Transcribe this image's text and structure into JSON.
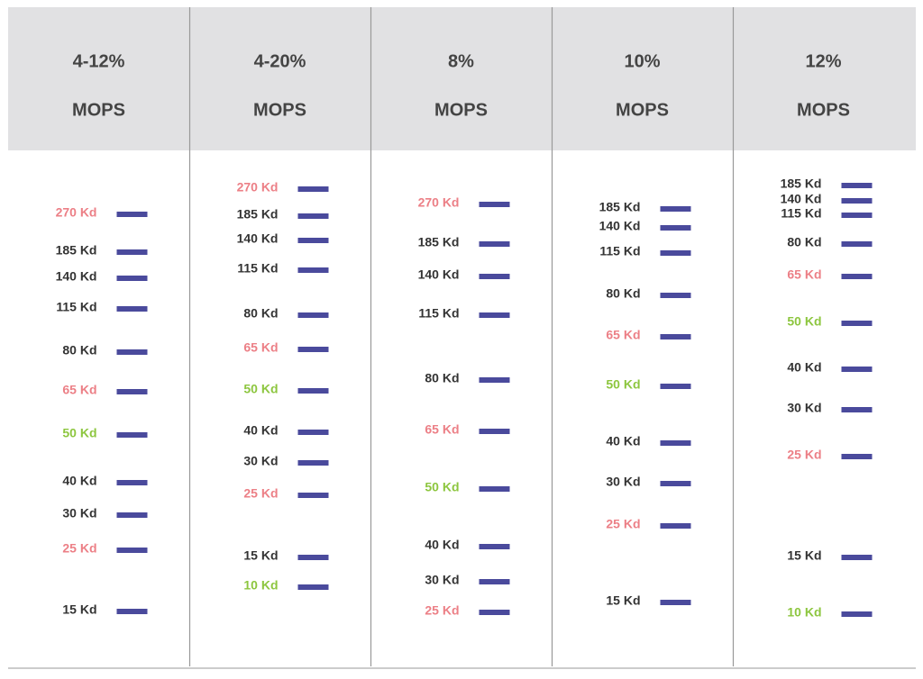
{
  "columns": [
    {
      "percent": "4-12%",
      "buffer": "MOPS",
      "bands": [
        {
          "label": "270 Kd",
          "color": "#ec7f86"
        },
        {
          "label": "185 Kd",
          "color": "#333333"
        },
        {
          "label": "140 Kd",
          "color": "#333333"
        },
        {
          "label": "115 Kd",
          "color": "#333333"
        },
        {
          "label": "80 Kd",
          "color": "#333333"
        },
        {
          "label": "65 Kd",
          "color": "#ec7f86"
        },
        {
          "label": "50 Kd",
          "color": "#8dc63f"
        },
        {
          "label": "40 Kd",
          "color": "#333333"
        },
        {
          "label": "30 Kd",
          "color": "#333333"
        },
        {
          "label": "25 Kd",
          "color": "#ec7f86"
        },
        {
          "label": "15 Kd",
          "color": "#333333"
        }
      ]
    },
    {
      "percent": "4-20%",
      "buffer": "MOPS",
      "bands": [
        {
          "label": "270 Kd",
          "color": "#ec7f86"
        },
        {
          "label": "185 Kd",
          "color": "#333333"
        },
        {
          "label": "140 Kd",
          "color": "#333333"
        },
        {
          "label": "115 Kd",
          "color": "#333333"
        },
        {
          "label": "80 Kd",
          "color": "#333333"
        },
        {
          "label": "65 Kd",
          "color": "#ec7f86"
        },
        {
          "label": "50 Kd",
          "color": "#8dc63f"
        },
        {
          "label": "40 Kd",
          "color": "#333333"
        },
        {
          "label": "30 Kd",
          "color": "#333333"
        },
        {
          "label": "25 Kd",
          "color": "#ec7f86"
        },
        {
          "label": "15 Kd",
          "color": "#333333"
        },
        {
          "label": "10 Kd",
          "color": "#8dc63f"
        }
      ]
    },
    {
      "percent": "8%",
      "buffer": "MOPS",
      "bands": [
        {
          "label": "270 Kd",
          "color": "#ec7f86"
        },
        {
          "label": "185 Kd",
          "color": "#333333"
        },
        {
          "label": "140 Kd",
          "color": "#333333"
        },
        {
          "label": "115 Kd",
          "color": "#333333"
        },
        {
          "label": "80 Kd",
          "color": "#333333"
        },
        {
          "label": "65 Kd",
          "color": "#ec7f86"
        },
        {
          "label": "50 Kd",
          "color": "#8dc63f"
        },
        {
          "label": "40 Kd",
          "color": "#333333"
        },
        {
          "label": "30 Kd",
          "color": "#333333"
        },
        {
          "label": "25 Kd",
          "color": "#ec7f86"
        }
      ]
    },
    {
      "percent": "10%",
      "buffer": "MOPS",
      "bands": [
        {
          "label": "185 Kd",
          "color": "#333333"
        },
        {
          "label": "140 Kd",
          "color": "#333333"
        },
        {
          "label": "115 Kd",
          "color": "#333333"
        },
        {
          "label": "80 Kd",
          "color": "#333333"
        },
        {
          "label": "65 Kd",
          "color": "#ec7f86"
        },
        {
          "label": "50 Kd",
          "color": "#8dc63f"
        },
        {
          "label": "40 Kd",
          "color": "#333333"
        },
        {
          "label": "30 Kd",
          "color": "#333333"
        },
        {
          "label": "25 Kd",
          "color": "#ec7f86"
        },
        {
          "label": "15 Kd",
          "color": "#333333"
        }
      ]
    },
    {
      "percent": "12%",
      "buffer": "MOPS",
      "bands": [
        {
          "label": "185 Kd",
          "color": "#333333"
        },
        {
          "label": "140 Kd",
          "color": "#333333"
        },
        {
          "label": "115 Kd",
          "color": "#333333"
        },
        {
          "label": "80 Kd",
          "color": "#333333"
        },
        {
          "label": "65 Kd",
          "color": "#ec7f86"
        },
        {
          "label": "50 Kd",
          "color": "#8dc63f"
        },
        {
          "label": "40 Kd",
          "color": "#333333"
        },
        {
          "label": "30 Kd",
          "color": "#333333"
        },
        {
          "label": "25 Kd",
          "color": "#ec7f86"
        },
        {
          "label": "15 Kd",
          "color": "#333333"
        },
        {
          "label": "10 Kd",
          "color": "#8dc63f"
        }
      ]
    }
  ]
}
